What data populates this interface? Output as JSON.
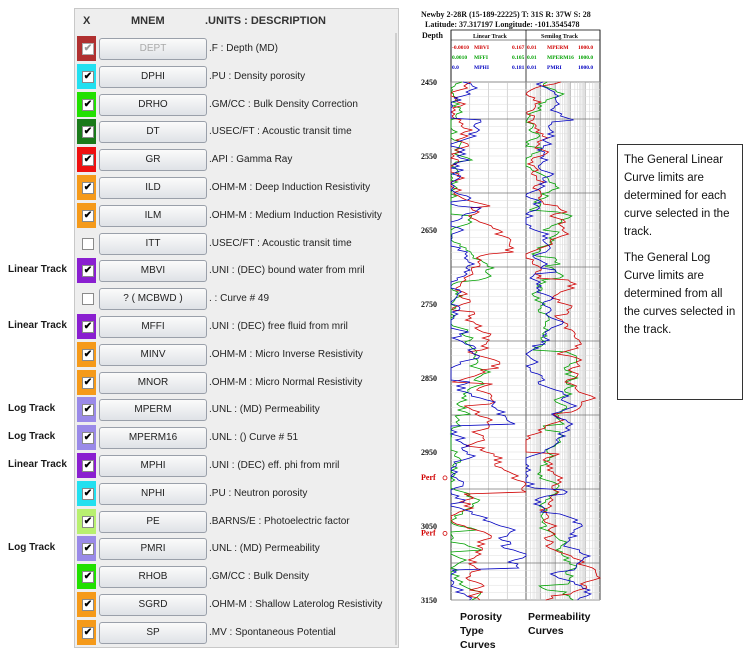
{
  "side_labels": [
    {
      "text": "Linear Track",
      "row": 9
    },
    {
      "text": "Linear Track",
      "row": 11
    },
    {
      "text": "Log Track",
      "row": 14
    },
    {
      "text": "Log Track",
      "row": 15
    },
    {
      "text": "Linear Track",
      "row": 16
    },
    {
      "text": "Log Track",
      "row": 19
    }
  ],
  "panel": {
    "headers": {
      "x": "X",
      "mnem": "MNEM",
      "units": ".UNITS  : DESCRIPTION"
    },
    "rows": [
      {
        "mnem": "DEPT",
        "desc": ".F : Depth (MD)",
        "color": "#b03030",
        "checked": true,
        "disabled": true
      },
      {
        "mnem": "DPHI",
        "desc": ".PU : Density porosity",
        "color": "#22e0f0",
        "checked": true,
        "disabled": false
      },
      {
        "mnem": "DRHO",
        "desc": ".GM/CC : Bulk Density Correction",
        "color": "#22e000",
        "checked": true,
        "disabled": false
      },
      {
        "mnem": "DT",
        "desc": ".USEC/FT : Acoustic transit time",
        "color": "#1a7a1a",
        "checked": true,
        "disabled": false
      },
      {
        "mnem": "GR",
        "desc": ".API : Gamma Ray",
        "color": "#ee1010",
        "checked": true,
        "disabled": false
      },
      {
        "mnem": "ILD",
        "desc": ".OHM-M : Deep Induction Resistivity",
        "color": "#f59a1a",
        "checked": true,
        "disabled": false
      },
      {
        "mnem": "ILM",
        "desc": ".OHM-M : Medium Induction Resistivity",
        "color": "#f59a1a",
        "checked": true,
        "disabled": false
      },
      {
        "mnem": "ITT",
        "desc": ".USEC/FT : Acoustic transit time",
        "color": "#eeeeee",
        "checked": false,
        "disabled": false
      },
      {
        "mnem": "MBVI",
        "desc": ".UNI : (DEC) bound water from mril",
        "color": "#8a1fd0",
        "checked": true,
        "disabled": false
      },
      {
        "mnem": "? ( MCBWD )",
        "desc": ". : Curve # 49",
        "color": "#eeeeee",
        "checked": false,
        "disabled": false
      },
      {
        "mnem": "MFFI",
        "desc": ".UNI : (DEC) free fluid from mril",
        "color": "#8a1fd0",
        "checked": true,
        "disabled": false
      },
      {
        "mnem": "MINV",
        "desc": ".OHM-M : Micro Inverse Resistivity",
        "color": "#f59a1a",
        "checked": true,
        "disabled": false
      },
      {
        "mnem": "MNOR",
        "desc": ".OHM-M : Micro Normal Resistivity",
        "color": "#f59a1a",
        "checked": true,
        "disabled": false
      },
      {
        "mnem": "MPERM",
        "desc": ".UNL : (MD) Permeability",
        "color": "#9a8ae8",
        "checked": true,
        "disabled": false
      },
      {
        "mnem": "MPERM16",
        "desc": ".UNL : () Curve # 51",
        "color": "#9a8ae8",
        "checked": true,
        "disabled": false
      },
      {
        "mnem": "MPHI",
        "desc": ".UNI : (DEC) eff. phi from mril",
        "color": "#8a1fd0",
        "checked": true,
        "disabled": false
      },
      {
        "mnem": "NPHI",
        "desc": ".PU : Neutron porosity",
        "color": "#22e0f0",
        "checked": true,
        "disabled": false
      },
      {
        "mnem": "PE",
        "desc": ".BARNS/E : Photoelectric factor",
        "color": "#b8f070",
        "checked": true,
        "disabled": false
      },
      {
        "mnem": "PMRI",
        "desc": ".UNL : (MD) Permeability",
        "color": "#9a8ae8",
        "checked": true,
        "disabled": false
      },
      {
        "mnem": "RHOB",
        "desc": ".GM/CC : Bulk Density",
        "color": "#22e000",
        "checked": true,
        "disabled": false
      },
      {
        "mnem": "SGRD",
        "desc": ".OHM-M : Shallow Laterolog Resistivity",
        "color": "#f59a1a",
        "checked": true,
        "disabled": false
      },
      {
        "mnem": "SP",
        "desc": ".MV : Spontaneous Potential",
        "color": "#f59a1a",
        "checked": true,
        "disabled": false
      }
    ]
  },
  "log_plot": {
    "title_line1": "Newby 2-28R (15-189-22225) T: 31S R: 37W S: 28",
    "title_line2": "Latitude: 37.317197 Longitude: -101.3545478",
    "depth_label": "Depth",
    "linear_track_title": "Linear Track",
    "semilog_track_title": "Semilog Track",
    "linear_legend": [
      {
        "min": "-0.0010",
        "name": "MBVI",
        "max": "0.167",
        "color": "#d00000"
      },
      {
        "min": "0.0010",
        "name": "MFFI",
        "max": "0.105",
        "color": "#00a000"
      },
      {
        "min": "0.0",
        "name": "MPHI",
        "max": "0.181",
        "color": "#0000c0"
      }
    ],
    "semilog_legend": [
      {
        "min": "0.01",
        "name": "MPERM",
        "max": "1000.0",
        "color": "#d00000"
      },
      {
        "min": "0.01",
        "name": "MPERM16",
        "max": "1000.0",
        "color": "#00a000"
      },
      {
        "min": "0.01",
        "name": "PMRI",
        "max": "1000.0",
        "color": "#0000c0"
      }
    ],
    "depth_ticks": [
      "2450",
      "2550",
      "2650",
      "2750",
      "2850",
      "2950",
      "3050",
      "3150"
    ],
    "depth_range": [
      2450,
      3150
    ],
    "perfs": [
      {
        "label": "Perf",
        "depth": 2985
      },
      {
        "label": "Perf",
        "depth": 3060
      }
    ],
    "caption_left": [
      "Porosity",
      "Type",
      "Curves"
    ],
    "caption_right": [
      "Permeability",
      "Curves"
    ],
    "colors": {
      "red": "#d00000",
      "green": "#00a000",
      "blue": "#0000c0",
      "perf": "#d00000"
    }
  },
  "note": {
    "para1": "The General Linear Curve limits are determined for each curve selected in the track.",
    "para2": "The General Log Curve limits are determined from all the curves selected in the track."
  }
}
